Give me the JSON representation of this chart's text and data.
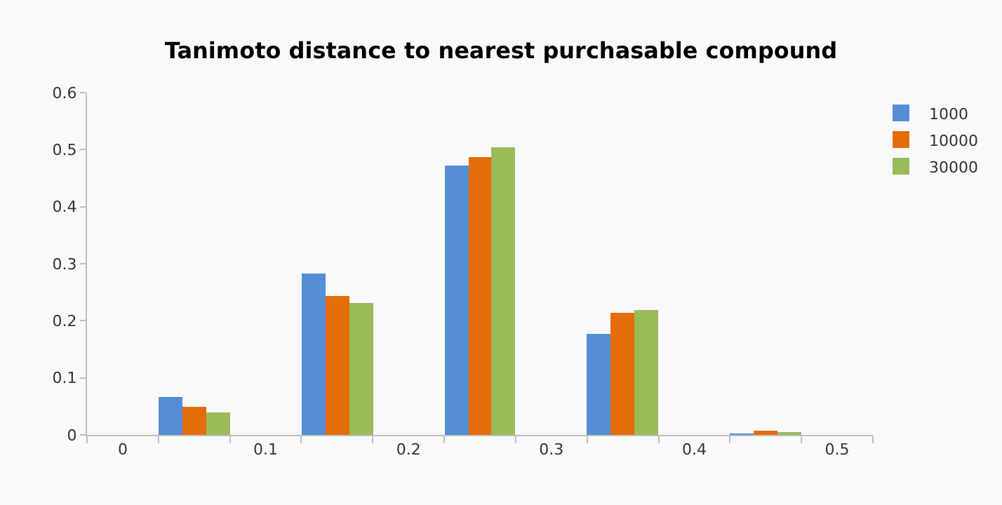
{
  "chart_data": {
    "type": "bar",
    "title": "Tanimoto distance to nearest purchasable compound",
    "categories": [
      "0",
      null,
      "0.1",
      null,
      "0.2",
      null,
      "0.3",
      null,
      "0.4",
      null,
      "0.5"
    ],
    "series": [
      {
        "name": "1000",
        "color": "#558ed5",
        "values": [
          null,
          0.067,
          null,
          0.283,
          null,
          0.471,
          null,
          0.178,
          null,
          0.001,
          null
        ]
      },
      {
        "name": "10000",
        "color": "#e46c0a",
        "values": [
          null,
          0.048,
          null,
          0.243,
          null,
          0.486,
          null,
          0.213,
          null,
          0.008,
          null
        ]
      },
      {
        "name": "30000",
        "color": "#9bbb59",
        "values": [
          null,
          0.039,
          null,
          0.23,
          null,
          0.504,
          null,
          0.22,
          null,
          0.006,
          null
        ]
      }
    ],
    "ylim": [
      0,
      0.6
    ],
    "yticks": [
      0,
      0.1,
      0.2,
      0.3,
      0.4,
      0.5,
      0.6
    ],
    "grid": false,
    "legend": "top right"
  }
}
